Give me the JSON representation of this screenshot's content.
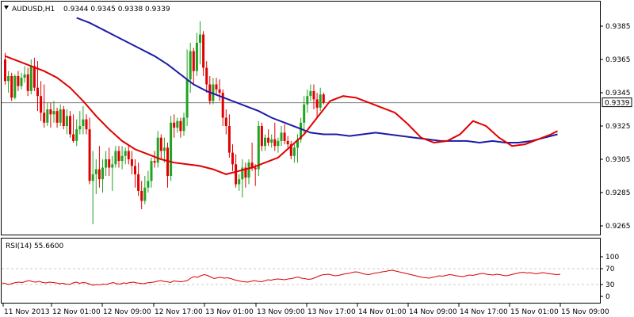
{
  "header": {
    "symbol_label": "AUDUSD,H1",
    "ohlc": "0.9344 0.9345 0.9338 0.9339"
  },
  "rsi": {
    "title": "RSI(14) 55.6600",
    "levels": [
      "100",
      "70",
      "30",
      "0"
    ]
  },
  "price_axis": {
    "ticks": [
      "0.9385",
      "0.9365",
      "0.9345",
      "0.9325",
      "0.9305",
      "0.9285",
      "0.9265"
    ],
    "current_price_label": "0.9339"
  },
  "time_axis": {
    "labels": [
      "11 Nov 2013",
      "12 Nov 01:00",
      "12 Nov 09:00",
      "12 Nov 17:00",
      "13 Nov 01:00",
      "13 Nov 09:00",
      "13 Nov 17:00",
      "14 Nov 01:00",
      "14 Nov 09:00",
      "14 Nov 17:00",
      "15 Nov 01:00",
      "15 Nov 09:00"
    ]
  },
  "colors": {
    "bull": "#22a222",
    "bear": "#e00000",
    "ma_fast": "#e00000",
    "ma_slow": "#1c1ca8",
    "rsi_line": "#dd0000",
    "grid": "#c8c8c8",
    "frame": "#000000",
    "price_line": "#7a7a7a",
    "price_tag_bg": "#ffffff"
  },
  "chart_data": {
    "type": "candlestick",
    "title": "AUDUSD,H1",
    "ylim": [
      0.926,
      0.9395
    ],
    "candles": [
      [
        0.9365,
        0.9369,
        0.935,
        0.9352
      ],
      [
        0.9352,
        0.9358,
        0.9345,
        0.9355
      ],
      [
        0.9355,
        0.9357,
        0.934,
        0.9342
      ],
      [
        0.9342,
        0.9356,
        0.9341,
        0.9355
      ],
      [
        0.9355,
        0.9358,
        0.9346,
        0.9349
      ],
      [
        0.9349,
        0.9357,
        0.9347,
        0.9354
      ],
      [
        0.9354,
        0.9361,
        0.9351,
        0.9356
      ],
      [
        0.9356,
        0.936,
        0.9343,
        0.9346
      ],
      [
        0.9346,
        0.9365,
        0.9344,
        0.9361
      ],
      [
        0.9361,
        0.9366,
        0.9346,
        0.9348
      ],
      [
        0.9348,
        0.9364,
        0.9334,
        0.9343
      ],
      [
        0.9343,
        0.9352,
        0.9328,
        0.9333
      ],
      [
        0.9333,
        0.935,
        0.9324,
        0.9327
      ],
      [
        0.9327,
        0.9339,
        0.9325,
        0.9335
      ],
      [
        0.9335,
        0.9339,
        0.9324,
        0.9332
      ],
      [
        0.9332,
        0.934,
        0.9327,
        0.9334
      ],
      [
        0.9334,
        0.9336,
        0.9324,
        0.9327
      ],
      [
        0.9327,
        0.9338,
        0.9325,
        0.9335
      ],
      [
        0.9335,
        0.9337,
        0.9323,
        0.9325
      ],
      [
        0.9325,
        0.9335,
        0.932,
        0.9331
      ],
      [
        0.9331,
        0.9334,
        0.9318,
        0.932
      ],
      [
        0.932,
        0.9332,
        0.9315,
        0.9316
      ],
      [
        0.9316,
        0.9329,
        0.9313,
        0.9323
      ],
      [
        0.9323,
        0.9334,
        0.932,
        0.9325
      ],
      [
        0.9325,
        0.9337,
        0.932,
        0.9329
      ],
      [
        0.9329,
        0.9332,
        0.932,
        0.9323
      ],
      [
        0.9323,
        0.933,
        0.929,
        0.9292
      ],
      [
        0.9292,
        0.931,
        0.9266,
        0.9296
      ],
      [
        0.9296,
        0.9305,
        0.9284,
        0.9299
      ],
      [
        0.9299,
        0.9313,
        0.9288,
        0.9293
      ],
      [
        0.9293,
        0.9305,
        0.9285,
        0.93
      ],
      [
        0.93,
        0.931,
        0.9295,
        0.9305
      ],
      [
        0.9305,
        0.9312,
        0.9295,
        0.93
      ],
      [
        0.93,
        0.9307,
        0.9286,
        0.9302
      ],
      [
        0.9302,
        0.9313,
        0.93,
        0.931
      ],
      [
        0.931,
        0.9313,
        0.93,
        0.9304
      ],
      [
        0.9304,
        0.9313,
        0.9299,
        0.9307
      ],
      [
        0.9307,
        0.9312,
        0.9302,
        0.931
      ],
      [
        0.931,
        0.9313,
        0.9302,
        0.9305
      ],
      [
        0.9305,
        0.931,
        0.9296,
        0.9301
      ],
      [
        0.9301,
        0.9305,
        0.9288,
        0.9296
      ],
      [
        0.9296,
        0.9303,
        0.9283,
        0.9286
      ],
      [
        0.9286,
        0.9292,
        0.9275,
        0.928
      ],
      [
        0.928,
        0.9295,
        0.9278,
        0.9288
      ],
      [
        0.9288,
        0.9298,
        0.9285,
        0.9292
      ],
      [
        0.9292,
        0.9306,
        0.9288,
        0.9304
      ],
      [
        0.9304,
        0.931,
        0.93,
        0.9303
      ],
      [
        0.9303,
        0.9322,
        0.93,
        0.9318
      ],
      [
        0.9318,
        0.932,
        0.9305,
        0.931
      ],
      [
        0.931,
        0.9318,
        0.9303,
        0.9312
      ],
      [
        0.9312,
        0.9315,
        0.9288,
        0.9295
      ],
      [
        0.9295,
        0.9331,
        0.9292,
        0.9327
      ],
      [
        0.9327,
        0.9332,
        0.9318,
        0.9324
      ],
      [
        0.9324,
        0.933,
        0.9321,
        0.9328
      ],
      [
        0.9328,
        0.933,
        0.9318,
        0.9322
      ],
      [
        0.9322,
        0.9333,
        0.9319,
        0.933
      ],
      [
        0.933,
        0.9371,
        0.9325,
        0.9353
      ],
      [
        0.9353,
        0.9375,
        0.9345,
        0.937
      ],
      [
        0.937,
        0.9372,
        0.935,
        0.9358
      ],
      [
        0.9358,
        0.9381,
        0.9355,
        0.9375
      ],
      [
        0.9375,
        0.9388,
        0.9362,
        0.938
      ],
      [
        0.938,
        0.9382,
        0.9355,
        0.936
      ],
      [
        0.936,
        0.9364,
        0.9345,
        0.935
      ],
      [
        0.935,
        0.9355,
        0.9338,
        0.934
      ],
      [
        0.934,
        0.9354,
        0.9338,
        0.935
      ],
      [
        0.935,
        0.9354,
        0.9344,
        0.9347
      ],
      [
        0.9347,
        0.9353,
        0.934,
        0.9345
      ],
      [
        0.9345,
        0.9347,
        0.9325,
        0.933
      ],
      [
        0.933,
        0.9335,
        0.932,
        0.9325
      ],
      [
        0.9325,
        0.9332,
        0.9306,
        0.9309
      ],
      [
        0.9309,
        0.9314,
        0.9298,
        0.9302
      ],
      [
        0.9302,
        0.9308,
        0.9288,
        0.929
      ],
      [
        0.929,
        0.9296,
        0.9286,
        0.9293
      ],
      [
        0.9293,
        0.9305,
        0.9282,
        0.93
      ],
      [
        0.93,
        0.9303,
        0.9288,
        0.9294
      ],
      [
        0.9294,
        0.9305,
        0.929,
        0.9303
      ],
      [
        0.9303,
        0.9315,
        0.9298,
        0.93
      ],
      [
        0.93,
        0.9302,
        0.9289,
        0.9299
      ],
      [
        0.9299,
        0.9328,
        0.9295,
        0.9325
      ],
      [
        0.9325,
        0.9327,
        0.931,
        0.9313
      ],
      [
        0.9313,
        0.932,
        0.931,
        0.9318
      ],
      [
        0.9318,
        0.9323,
        0.9313,
        0.9315
      ],
      [
        0.9315,
        0.932,
        0.9312,
        0.9317
      ],
      [
        0.9317,
        0.9327,
        0.931,
        0.9313
      ],
      [
        0.9313,
        0.9318,
        0.9309,
        0.9316
      ],
      [
        0.9316,
        0.9325,
        0.9313,
        0.9321
      ],
      [
        0.9321,
        0.9326,
        0.9314,
        0.9316
      ],
      [
        0.9316,
        0.9319,
        0.9312,
        0.9314
      ],
      [
        0.9314,
        0.9316,
        0.9305,
        0.9307
      ],
      [
        0.9307,
        0.9314,
        0.9303,
        0.9312
      ],
      [
        0.9312,
        0.932,
        0.9303,
        0.9317
      ],
      [
        0.9317,
        0.933,
        0.9315,
        0.9327
      ],
      [
        0.9327,
        0.9343,
        0.932,
        0.9338
      ],
      [
        0.9338,
        0.9347,
        0.9333,
        0.9343
      ],
      [
        0.9343,
        0.935,
        0.934,
        0.9346
      ],
      [
        0.9346,
        0.935,
        0.9335,
        0.9341
      ],
      [
        0.9341,
        0.9345,
        0.933,
        0.9336
      ],
      [
        0.9336,
        0.9348,
        0.9334,
        0.9344
      ],
      [
        0.9344,
        0.9345,
        0.9338,
        0.9339
      ]
    ],
    "ma_fast": [
      [
        0,
        0.9367
      ],
      [
        4,
        0.9364
      ],
      [
        8,
        0.9361
      ],
      [
        12,
        0.9358
      ],
      [
        16,
        0.9354
      ],
      [
        20,
        0.9348
      ],
      [
        24,
        0.934
      ],
      [
        28,
        0.9331
      ],
      [
        32,
        0.9323
      ],
      [
        36,
        0.9316
      ],
      [
        40,
        0.9311
      ],
      [
        44,
        0.9308
      ],
      [
        48,
        0.9305
      ],
      [
        52,
        0.9303
      ],
      [
        56,
        0.9302
      ],
      [
        60,
        0.9301
      ],
      [
        64,
        0.9299
      ],
      [
        68,
        0.9296
      ],
      [
        72,
        0.9298
      ],
      [
        76,
        0.93
      ],
      [
        80,
        0.9303
      ],
      [
        84,
        0.9306
      ],
      [
        88,
        0.9313
      ],
      [
        92,
        0.932
      ],
      [
        96,
        0.933
      ],
      [
        100,
        0.934
      ],
      [
        104,
        0.9343
      ],
      [
        108,
        0.9342
      ],
      [
        112,
        0.9339
      ],
      [
        116,
        0.9336
      ],
      [
        120,
        0.9333
      ],
      [
        124,
        0.9326
      ],
      [
        128,
        0.9318
      ],
      [
        132,
        0.9315
      ],
      [
        136,
        0.9316
      ],
      [
        140,
        0.932
      ],
      [
        144,
        0.9328
      ],
      [
        148,
        0.9325
      ],
      [
        152,
        0.9318
      ],
      [
        156,
        0.9313
      ],
      [
        160,
        0.9314
      ],
      [
        164,
        0.9317
      ],
      [
        168,
        0.932
      ],
      [
        170,
        0.9322
      ]
    ],
    "ma_slow": [
      [
        22,
        0.939
      ],
      [
        26,
        0.9387
      ],
      [
        30,
        0.9383
      ],
      [
        34,
        0.9379
      ],
      [
        38,
        0.9375
      ],
      [
        42,
        0.9371
      ],
      [
        46,
        0.9367
      ],
      [
        50,
        0.9362
      ],
      [
        54,
        0.9356
      ],
      [
        58,
        0.935
      ],
      [
        62,
        0.9346
      ],
      [
        66,
        0.9343
      ],
      [
        70,
        0.934
      ],
      [
        74,
        0.9337
      ],
      [
        78,
        0.9334
      ],
      [
        82,
        0.933
      ],
      [
        86,
        0.9327
      ],
      [
        90,
        0.9324
      ],
      [
        94,
        0.9321
      ],
      [
        98,
        0.932
      ],
      [
        102,
        0.932
      ],
      [
        106,
        0.9319
      ],
      [
        110,
        0.932
      ],
      [
        114,
        0.9321
      ],
      [
        118,
        0.932
      ],
      [
        122,
        0.9319
      ],
      [
        126,
        0.9318
      ],
      [
        130,
        0.9317
      ],
      [
        134,
        0.9316
      ],
      [
        138,
        0.9316
      ],
      [
        142,
        0.9316
      ],
      [
        146,
        0.9315
      ],
      [
        150,
        0.9316
      ],
      [
        154,
        0.9315
      ],
      [
        158,
        0.9315
      ],
      [
        162,
        0.9316
      ],
      [
        166,
        0.9318
      ],
      [
        170,
        0.932
      ]
    ],
    "current_price": 0.9339,
    "rsi_series": [
      34,
      32,
      30,
      33,
      35,
      36,
      35,
      38,
      40,
      37,
      36,
      38,
      35,
      34,
      36,
      35,
      34,
      32,
      33,
      31,
      30,
      34,
      36,
      33,
      35,
      34,
      31,
      28,
      30,
      29,
      31,
      30,
      33,
      35,
      32,
      31,
      34,
      33,
      35,
      36,
      34,
      33,
      32,
      34,
      35,
      36,
      38,
      40,
      38,
      37,
      35,
      39,
      38,
      37,
      38,
      40,
      46,
      50,
      48,
      52,
      55,
      53,
      49,
      45,
      47,
      48,
      46,
      47,
      45,
      42,
      40,
      38,
      37,
      36,
      38,
      40,
      38,
      37,
      39,
      42,
      41,
      43,
      44,
      43,
      42,
      44,
      45,
      47,
      49,
      46,
      45,
      43,
      44,
      47,
      51,
      54,
      55,
      56,
      54,
      52,
      53,
      55,
      57,
      58,
      60,
      62,
      61,
      58,
      56,
      55,
      57,
      59,
      60,
      62,
      63,
      65,
      66,
      64,
      62,
      60,
      58,
      56,
      54,
      52,
      50,
      48,
      47,
      46,
      48,
      50,
      52,
      51,
      53,
      55,
      54,
      52,
      51,
      50,
      52,
      54,
      53,
      55,
      57,
      58,
      56,
      55,
      54,
      56,
      55,
      53,
      52,
      54,
      56,
      58,
      60,
      61,
      59,
      60,
      58,
      57,
      59,
      60,
      58,
      57,
      56,
      55,
      56
    ]
  }
}
